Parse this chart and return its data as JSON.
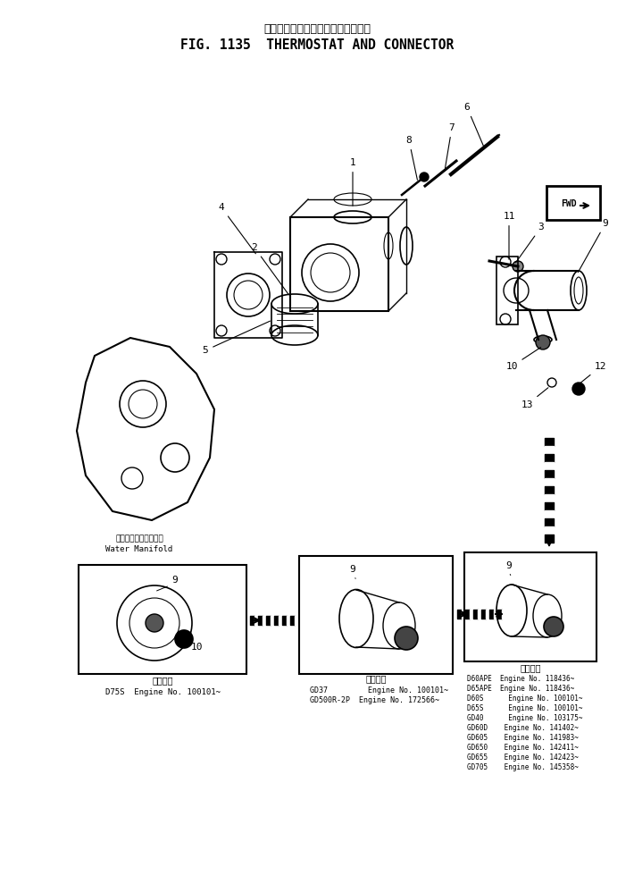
{
  "title_japanese": "サーモスタット　および　コネクタ",
  "title_english": "FIG. 1135  THERMOSTAT AND CONNECTOR",
  "background_color": "#ffffff",
  "fig_width": 7.1,
  "fig_height": 9.89,
  "dpi": 100,
  "water_manifold_label_jp": "ウォータマニホールド",
  "water_manifold_label_en": "Water Manifold",
  "box1_apply_jp": "適用号機",
  "box1_line1": "D75S  Engine No. 100101~",
  "box2_apply_jp": "適用号機",
  "box2_line1": "GD37         Engine No. 100101~",
  "box2_line2": "GD500R-2P  Engine No. 172566~",
  "box3_apply_jp": "適用号機",
  "box3_lines": [
    "D60APE  Engine No. 118436~",
    "D65APE  Engine No. 118436~",
    "D60S      Engine No. 100101~",
    "D65S      Engine No. 100101~",
    "GD40      Engine No. 103175~",
    "GD60D    Engine No. 141402~",
    "GD605    Engine No. 141983~",
    "GD650    Engine No. 142411~",
    "GD655    Engine No. 142423~",
    "GD705    Engine No. 145358~"
  ]
}
